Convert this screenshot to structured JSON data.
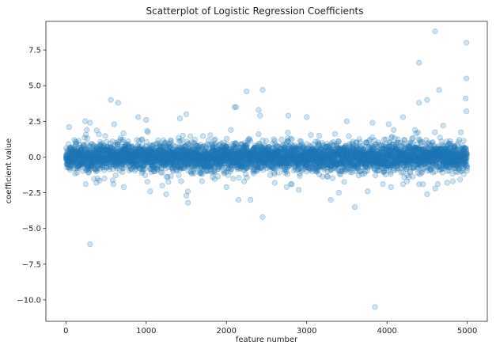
{
  "chart_data": {
    "type": "scatter",
    "title": "Scatterplot of Logistic Regression Coefficients",
    "xlabel": "feature number",
    "ylabel": "coefficient value",
    "xlim": [
      -250,
      5250
    ],
    "ylim": [
      -11.5,
      9.5
    ],
    "xticks": [
      0,
      1000,
      2000,
      3000,
      4000,
      5000
    ],
    "xtick_labels": [
      "0",
      "1000",
      "2000",
      "3000",
      "4000",
      "5000"
    ],
    "yticks": [
      7.5,
      5.0,
      2.5,
      0.0,
      -2.5,
      -5.0,
      -7.5,
      -10.0
    ],
    "ytick_labels": [
      "7.5",
      "5.0",
      "2.5",
      "0.0",
      "−2.5",
      "−5.0",
      "−7.5",
      "−10.0"
    ],
    "grid": false,
    "legend": "none",
    "marker_color": "#1f77b4",
    "marker_alpha": 0.22,
    "n_points": 5000,
    "cluster_std": 0.45,
    "outliers": [
      {
        "x": 300,
        "y": -6.1
      },
      {
        "x": 3850,
        "y": -10.5
      },
      {
        "x": 4600,
        "y": 8.8
      },
      {
        "x": 4990,
        "y": 8.0
      },
      {
        "x": 4400,
        "y": 6.6
      },
      {
        "x": 4990,
        "y": 5.5
      },
      {
        "x": 2450,
        "y": 4.7
      },
      {
        "x": 2250,
        "y": 4.6
      },
      {
        "x": 4650,
        "y": 4.7
      },
      {
        "x": 4980,
        "y": 4.1
      },
      {
        "x": 560,
        "y": 4.0
      },
      {
        "x": 650,
        "y": 3.8
      },
      {
        "x": 4500,
        "y": 4.0
      },
      {
        "x": 4400,
        "y": 3.8
      },
      {
        "x": 2100,
        "y": 3.5
      },
      {
        "x": 2120,
        "y": 3.5
      },
      {
        "x": 2400,
        "y": 3.3
      },
      {
        "x": 4990,
        "y": 3.2
      },
      {
        "x": 2420,
        "y": 2.9
      },
      {
        "x": 2770,
        "y": 2.9
      },
      {
        "x": 3000,
        "y": 2.8
      },
      {
        "x": 1500,
        "y": 3.0
      },
      {
        "x": 1420,
        "y": 2.7
      },
      {
        "x": 1000,
        "y": 2.6
      },
      {
        "x": 900,
        "y": 2.8
      },
      {
        "x": 4200,
        "y": 2.8
      },
      {
        "x": 240,
        "y": 2.5
      },
      {
        "x": 300,
        "y": 2.4
      },
      {
        "x": 3500,
        "y": 2.5
      },
      {
        "x": 3820,
        "y": 2.4
      },
      {
        "x": 4020,
        "y": 2.3
      },
      {
        "x": 40,
        "y": 2.1
      },
      {
        "x": 600,
        "y": 2.3
      },
      {
        "x": 4700,
        "y": 2.2
      },
      {
        "x": 2450,
        "y": -4.2
      },
      {
        "x": 3600,
        "y": -3.5
      },
      {
        "x": 1520,
        "y": -3.2
      },
      {
        "x": 1520,
        "y": -2.4
      },
      {
        "x": 1500,
        "y": -2.7
      },
      {
        "x": 2150,
        "y": -3.0
      },
      {
        "x": 2300,
        "y": -3.0
      },
      {
        "x": 1250,
        "y": -2.6
      },
      {
        "x": 3400,
        "y": -2.5
      },
      {
        "x": 3300,
        "y": -3.0
      },
      {
        "x": 3760,
        "y": -2.4
      },
      {
        "x": 4500,
        "y": -2.6
      },
      {
        "x": 4600,
        "y": -2.2
      },
      {
        "x": 1050,
        "y": -2.4
      },
      {
        "x": 1200,
        "y": -2.0
      },
      {
        "x": 2000,
        "y": -2.1
      },
      {
        "x": 2750,
        "y": -2.1
      },
      {
        "x": 2900,
        "y": -2.3
      },
      {
        "x": 3950,
        "y": -1.9
      },
      {
        "x": 4050,
        "y": -2.1
      },
      {
        "x": 4400,
        "y": -1.9
      },
      {
        "x": 4250,
        "y": -1.7
      },
      {
        "x": 4750,
        "y": -1.8
      },
      {
        "x": 720,
        "y": -2.1
      },
      {
        "x": 380,
        "y": -1.8
      },
      {
        "x": 480,
        "y": -1.5
      },
      {
        "x": 4820,
        "y": -1.7
      }
    ]
  }
}
